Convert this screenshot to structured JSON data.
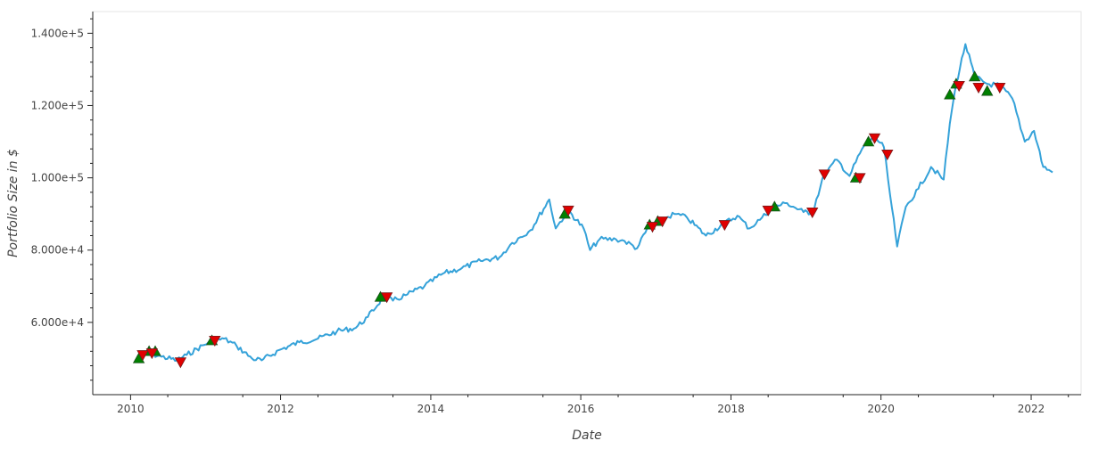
{
  "chart_data": {
    "type": "line",
    "title": "",
    "xlabel": "Date",
    "ylabel": "Portfolio Size in $",
    "xlim": [
      "2009-07-01",
      "2022-09-01"
    ],
    "ylim": [
      40000,
      146000
    ],
    "x_ticks": [
      {
        "value": "2010-01-01",
        "label": "2010"
      },
      {
        "value": "2012-01-01",
        "label": "2012"
      },
      {
        "value": "2014-01-01",
        "label": "2014"
      },
      {
        "value": "2016-01-01",
        "label": "2016"
      },
      {
        "value": "2018-01-01",
        "label": "2018"
      },
      {
        "value": "2020-01-01",
        "label": "2020"
      },
      {
        "value": "2022-01-01",
        "label": "2022"
      }
    ],
    "y_ticks": [
      {
        "value": 60000,
        "label": "6.000e+4"
      },
      {
        "value": 80000,
        "label": "8.000e+4"
      },
      {
        "value": 100000,
        "label": "1.000e+5"
      },
      {
        "value": 120000,
        "label": "1.200e+5"
      },
      {
        "value": 140000,
        "label": "1.400e+5"
      }
    ],
    "grid": false,
    "legend": "none",
    "series": [
      {
        "color": "#35a2d9",
        "points": [
          {
            "x": "2010-02-01",
            "y": 50500
          },
          {
            "x": "2010-04-01",
            "y": 51500
          },
          {
            "x": "2010-06-01",
            "y": 50500
          },
          {
            "x": "2010-08-15",
            "y": 49500
          },
          {
            "x": "2010-10-01",
            "y": 51000
          },
          {
            "x": "2011-01-15",
            "y": 54500
          },
          {
            "x": "2011-04-01",
            "y": 55500
          },
          {
            "x": "2011-06-01",
            "y": 53500
          },
          {
            "x": "2011-08-15",
            "y": 50000
          },
          {
            "x": "2011-10-01",
            "y": 49500
          },
          {
            "x": "2012-01-01",
            "y": 52500
          },
          {
            "x": "2012-04-01",
            "y": 54500
          },
          {
            "x": "2012-07-01",
            "y": 55500
          },
          {
            "x": "2012-10-01",
            "y": 57500
          },
          {
            "x": "2013-01-01",
            "y": 58500
          },
          {
            "x": "2013-03-01",
            "y": 61500
          },
          {
            "x": "2013-05-15",
            "y": 67000
          },
          {
            "x": "2013-07-01",
            "y": 66000
          },
          {
            "x": "2013-09-01",
            "y": 67500
          },
          {
            "x": "2013-12-01",
            "y": 70000
          },
          {
            "x": "2014-03-01",
            "y": 73500
          },
          {
            "x": "2014-06-01",
            "y": 75000
          },
          {
            "x": "2014-09-01",
            "y": 77000
          },
          {
            "x": "2014-12-01",
            "y": 78000
          },
          {
            "x": "2015-02-01",
            "y": 82000
          },
          {
            "x": "2015-05-01",
            "y": 85500
          },
          {
            "x": "2015-08-01",
            "y": 94000
          },
          {
            "x": "2015-09-01",
            "y": 86000
          },
          {
            "x": "2015-11-01",
            "y": 91000
          },
          {
            "x": "2016-01-15",
            "y": 86000
          },
          {
            "x": "2016-02-15",
            "y": 80000
          },
          {
            "x": "2016-04-01",
            "y": 83000
          },
          {
            "x": "2016-06-20",
            "y": 83000
          },
          {
            "x": "2016-08-01",
            "y": 82500
          },
          {
            "x": "2016-10-01",
            "y": 80500
          },
          {
            "x": "2016-12-01",
            "y": 87000
          },
          {
            "x": "2017-02-01",
            "y": 88500
          },
          {
            "x": "2017-04-01",
            "y": 90000
          },
          {
            "x": "2017-06-01",
            "y": 89000
          },
          {
            "x": "2017-09-01",
            "y": 84000
          },
          {
            "x": "2017-12-01",
            "y": 87500
          },
          {
            "x": "2018-02-01",
            "y": 89500
          },
          {
            "x": "2018-04-01",
            "y": 86000
          },
          {
            "x": "2018-06-01",
            "y": 89000
          },
          {
            "x": "2018-08-01",
            "y": 92000
          },
          {
            "x": "2018-10-01",
            "y": 93000
          },
          {
            "x": "2018-12-20",
            "y": 90500
          },
          {
            "x": "2019-02-01",
            "y": 90500
          },
          {
            "x": "2019-04-01",
            "y": 101000
          },
          {
            "x": "2019-06-01",
            "y": 105000
          },
          {
            "x": "2019-08-01",
            "y": 100500
          },
          {
            "x": "2019-10-01",
            "y": 108000
          },
          {
            "x": "2019-12-01",
            "y": 111500
          },
          {
            "x": "2020-01-15",
            "y": 108500
          },
          {
            "x": "2020-02-15",
            "y": 95000
          },
          {
            "x": "2020-03-20",
            "y": 81000
          },
          {
            "x": "2020-05-01",
            "y": 92000
          },
          {
            "x": "2020-07-01",
            "y": 97000
          },
          {
            "x": "2020-09-01",
            "y": 103000
          },
          {
            "x": "2020-11-01",
            "y": 99500
          },
          {
            "x": "2020-12-01",
            "y": 115000
          },
          {
            "x": "2021-01-01",
            "y": 126000
          },
          {
            "x": "2021-02-15",
            "y": 137000
          },
          {
            "x": "2021-04-01",
            "y": 128000
          },
          {
            "x": "2021-06-01",
            "y": 126000
          },
          {
            "x": "2021-08-01",
            "y": 125500
          },
          {
            "x": "2021-10-01",
            "y": 122000
          },
          {
            "x": "2021-12-01",
            "y": 110000
          },
          {
            "x": "2022-01-15",
            "y": 113000
          },
          {
            "x": "2022-03-01",
            "y": 103000
          },
          {
            "x": "2022-04-15",
            "y": 101500
          }
        ]
      }
    ],
    "buy_markers": {
      "color": "#008000",
      "points": [
        {
          "x": "2010-02-10",
          "y": 50000
        },
        {
          "x": "2010-04-01",
          "y": 52000
        },
        {
          "x": "2010-05-01",
          "y": 52000
        },
        {
          "x": "2011-02-01",
          "y": 55000
        },
        {
          "x": "2013-05-01",
          "y": 67000
        },
        {
          "x": "2015-10-15",
          "y": 90000
        },
        {
          "x": "2016-12-01",
          "y": 87000
        },
        {
          "x": "2017-01-10",
          "y": 88000
        },
        {
          "x": "2018-08-01",
          "y": 92000
        },
        {
          "x": "2019-09-01",
          "y": 100000
        },
        {
          "x": "2019-11-01",
          "y": 110000
        },
        {
          "x": "2020-12-01",
          "y": 123000
        },
        {
          "x": "2021-01-01",
          "y": 126000
        },
        {
          "x": "2021-04-01",
          "y": 128000
        },
        {
          "x": "2021-06-01",
          "y": 124000
        }
      ]
    },
    "sell_markers": {
      "color": "#e00000",
      "points": [
        {
          "x": "2010-03-01",
          "y": 51000
        },
        {
          "x": "2010-04-15",
          "y": 51500
        },
        {
          "x": "2010-09-01",
          "y": 49000
        },
        {
          "x": "2011-02-15",
          "y": 55000
        },
        {
          "x": "2013-06-01",
          "y": 67000
        },
        {
          "x": "2015-11-01",
          "y": 91000
        },
        {
          "x": "2016-12-15",
          "y": 86500
        },
        {
          "x": "2017-02-01",
          "y": 88000
        },
        {
          "x": "2017-12-01",
          "y": 87000
        },
        {
          "x": "2018-07-01",
          "y": 91000
        },
        {
          "x": "2019-02-01",
          "y": 90500
        },
        {
          "x": "2019-04-01",
          "y": 101000
        },
        {
          "x": "2019-09-20",
          "y": 100000
        },
        {
          "x": "2019-12-01",
          "y": 111000
        },
        {
          "x": "2020-02-01",
          "y": 106500
        },
        {
          "x": "2021-01-15",
          "y": 125500
        },
        {
          "x": "2021-04-20",
          "y": 125000
        },
        {
          "x": "2021-08-01",
          "y": 125000
        }
      ]
    }
  }
}
